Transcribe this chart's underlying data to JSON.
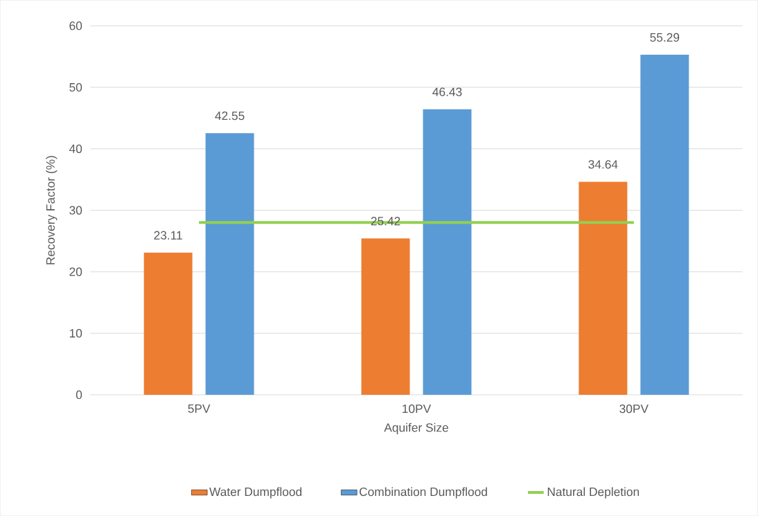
{
  "chart_data": {
    "type": "bar",
    "xlabel": "Aquifer Size",
    "ylabel": "Recovery Factor (%)",
    "categories": [
      "5PV",
      "10PV",
      "30PV"
    ],
    "series": [
      {
        "name": "Water Dumpflood",
        "color": "#ed7d31",
        "values": [
          23.11,
          25.42,
          34.64
        ],
        "value_labels": [
          "23.11",
          "25.42",
          "34.64"
        ]
      },
      {
        "name": "Combination Dumpflood",
        "color": "#5b9bd5",
        "values": [
          42.55,
          46.43,
          55.29
        ],
        "value_labels": [
          "42.55",
          "46.43",
          "55.29"
        ]
      },
      {
        "name": "Natural Depletion",
        "type": "line",
        "color": "#92d050",
        "values": [
          28,
          28,
          28
        ]
      }
    ],
    "ylim": [
      0,
      60
    ],
    "yticks": [
      0,
      10,
      20,
      30,
      40,
      50,
      60
    ],
    "grid": "y",
    "legend": "bottom"
  }
}
